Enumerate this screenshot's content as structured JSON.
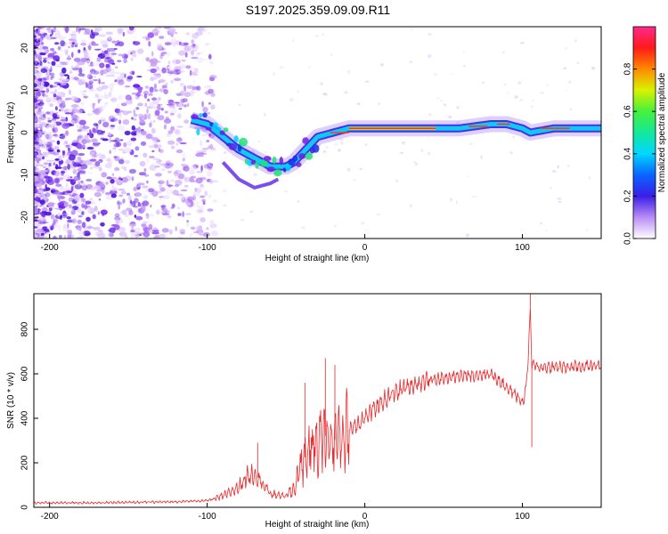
{
  "title": "S197.2025.359.09.09.R11",
  "chart_data": [
    {
      "type": "heatmap",
      "name": "spectrogram",
      "xlabel": "Height of straight line (km)",
      "ylabel": "Frequency (Hz)",
      "xlim": [
        -210,
        150
      ],
      "ylim": [
        -25,
        25
      ],
      "xticks": [
        "-200",
        "-100",
        "0",
        "100"
      ],
      "xtick_values": [
        -200,
        -100,
        0,
        100
      ],
      "yticks": [
        "20",
        "10",
        "0",
        "-10",
        "-20"
      ],
      "ytick_values": [
        20,
        10,
        0,
        -10,
        -20
      ],
      "colorbar": {
        "label": "Normalized spectral amplitude",
        "range": [
          0,
          1
        ],
        "ticks": [
          "0.0",
          "0.2",
          "0.4",
          "0.6",
          "0.8"
        ],
        "tick_values": [
          0,
          0.2,
          0.4,
          0.6,
          0.8
        ]
      },
      "ridge": {
        "x": [
          -110,
          -100,
          -90,
          -80,
          -70,
          -60,
          -50,
          -45,
          -40,
          -35,
          -30,
          -20,
          -10,
          0,
          20,
          40,
          60,
          80,
          90,
          100,
          105,
          120,
          150
        ],
        "y": [
          3,
          2,
          -1,
          -4,
          -6,
          -8,
          -8,
          -7,
          -5,
          -3,
          -1,
          0,
          1,
          1,
          1,
          1,
          1,
          2,
          2,
          1,
          0,
          1,
          1
        ]
      }
    },
    {
      "type": "line",
      "name": "snr",
      "xlabel": "Height of straight line (km)",
      "ylabel": "SNR (10 * v/v)",
      "xlim": [
        -210,
        150
      ],
      "ylim": [
        0,
        960
      ],
      "xticks": [
        "-200",
        "-100",
        "0",
        "100"
      ],
      "xtick_values": [
        -200,
        -100,
        0,
        100
      ],
      "yticks": [
        "0",
        "200",
        "400",
        "600",
        "800"
      ],
      "ytick_values": [
        0,
        200,
        400,
        600,
        800
      ],
      "color": "#e8282b",
      "envelope": {
        "x": [
          -210,
          -180,
          -150,
          -120,
          -100,
          -90,
          -80,
          -75,
          -70,
          -65,
          -60,
          -50,
          -45,
          -40,
          -35,
          -30,
          -25,
          -20,
          -15,
          -10,
          0,
          10,
          20,
          30,
          40,
          60,
          80,
          95,
          100,
          102,
          104,
          105,
          106,
          110,
          120,
          130,
          150
        ],
        "y": [
          20,
          20,
          22,
          25,
          30,
          50,
          90,
          140,
          150,
          110,
          60,
          50,
          80,
          200,
          260,
          300,
          320,
          300,
          320,
          350,
          400,
          470,
          520,
          550,
          570,
          590,
          600,
          510,
          470,
          520,
          700,
          900,
          640,
          630,
          630,
          630,
          640
        ]
      },
      "spikes": {
        "x": [
          -68,
          -38,
          -25,
          -19,
          105,
          106
        ],
        "y": [
          290,
          560,
          670,
          640,
          960,
          270
        ]
      }
    }
  ]
}
